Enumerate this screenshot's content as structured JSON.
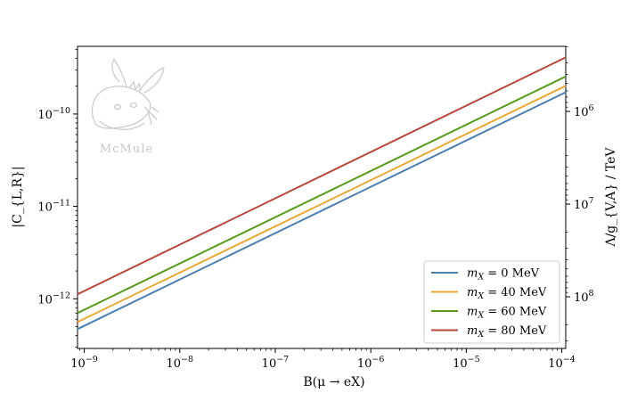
{
  "chart_data": {
    "type": "line",
    "xscale": "log",
    "yscale": "log",
    "xlim": [
      8.5e-10,
      0.00011
    ],
    "ylim": [
      2.9e-13,
      5.4e-10
    ],
    "xlabel": "B(μ → eX)",
    "ylabel": "|C_{L,R}|",
    "y2label": "Λ/g_{V,A} / TeV",
    "xticks": [
      {
        "value": 1e-09,
        "base": "10",
        "exp": "−9"
      },
      {
        "value": 1e-08,
        "base": "10",
        "exp": "−8"
      },
      {
        "value": 1e-07,
        "base": "10",
        "exp": "−7"
      },
      {
        "value": 1e-06,
        "base": "10",
        "exp": "−6"
      },
      {
        "value": 1e-05,
        "base": "10",
        "exp": "−5"
      },
      {
        "value": 0.0001,
        "base": "10",
        "exp": "−4"
      }
    ],
    "yticks": [
      {
        "value": 1e-12,
        "base": "10",
        "exp": "−12"
      },
      {
        "value": 1e-11,
        "base": "10",
        "exp": "−11"
      },
      {
        "value": 1e-10,
        "base": "10",
        "exp": "−10"
      }
    ],
    "y2ticks": [
      {
        "value": 100000000.0,
        "base": "10",
        "exp": "8"
      },
      {
        "value": 10000000.0,
        "base": "10",
        "exp": "7"
      },
      {
        "value": 1000000.0,
        "base": "10",
        "exp": "6"
      }
    ],
    "series": [
      {
        "name": "m_X = 0 MeV",
        "label_main": "m",
        "label_sub": "X",
        "label_rest": " = 0 MeV",
        "color": "#4a7fb0",
        "x": [
          8.5e-10,
          0.00011
        ],
        "y": [
          4.7e-13,
          1.72e-10
        ]
      },
      {
        "name": "m_X = 40 MeV",
        "label_main": "m",
        "label_sub": "X",
        "label_rest": " = 40 MeV",
        "color": "#e8a838",
        "x": [
          8.5e-10,
          0.00011
        ],
        "y": [
          5.6e-13,
          2.02e-10
        ]
      },
      {
        "name": "m_X = 60 MeV",
        "label_main": "m",
        "label_sub": "X",
        "label_rest": " = 60 MeV",
        "color": "#5a9a1e",
        "x": [
          8.5e-10,
          0.00011
        ],
        "y": [
          7e-13,
          2.55e-10
        ]
      },
      {
        "name": "m_X = 80 MeV",
        "label_main": "m",
        "label_sub": "X",
        "label_rest": " = 80 MeV",
        "color": "#b5493e",
        "x": [
          8.5e-10,
          0.00011
        ],
        "y": [
          1.12e-12,
          4.1e-10
        ]
      }
    ],
    "legend_position": "bottom-right",
    "grid": false
  },
  "logo": {
    "text": "McMule"
  },
  "colors": {
    "axes": "#000000",
    "logo": "#c8c8c8",
    "background": "#ffffff"
  }
}
